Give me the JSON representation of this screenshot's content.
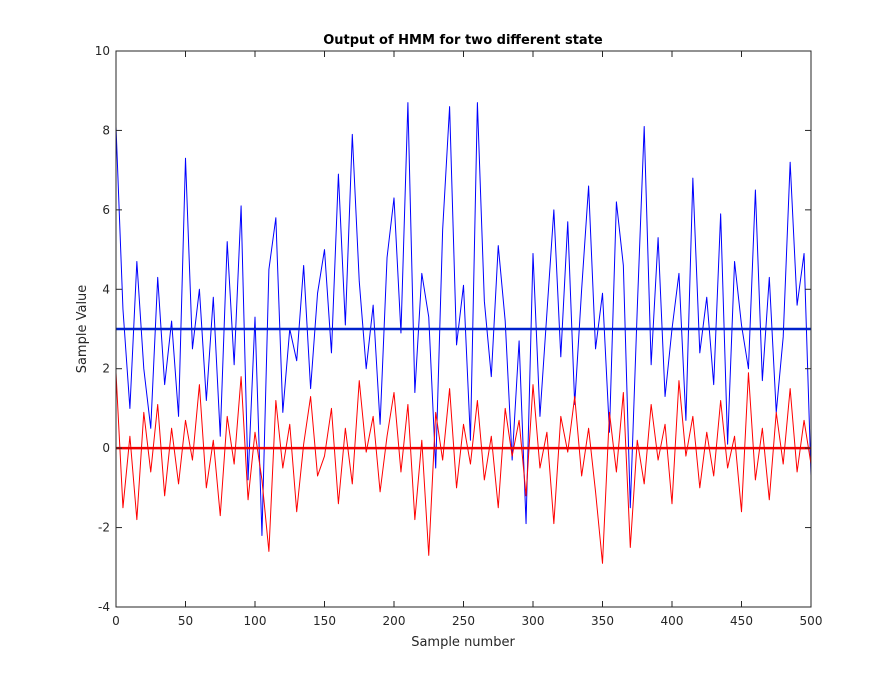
{
  "chart_data": {
    "type": "line",
    "title": "Output of HMM for two different state",
    "x_label": "Sample number",
    "y_label": "Sample Value",
    "x": [
      0,
      5,
      10,
      15,
      20,
      25,
      30,
      35,
      40,
      45,
      50,
      55,
      60,
      65,
      70,
      75,
      80,
      85,
      90,
      95,
      100,
      105,
      110,
      115,
      120,
      125,
      130,
      135,
      140,
      145,
      150,
      155,
      160,
      165,
      170,
      175,
      180,
      185,
      190,
      195,
      200,
      205,
      210,
      215,
      220,
      225,
      230,
      235,
      240,
      245,
      250,
      255,
      260,
      265,
      270,
      275,
      280,
      285,
      290,
      295,
      300,
      305,
      310,
      315,
      320,
      325,
      330,
      335,
      340,
      345,
      350,
      355,
      360,
      365,
      370,
      375,
      380,
      385,
      390,
      395,
      400,
      405,
      410,
      415,
      420,
      425,
      430,
      435,
      440,
      445,
      450,
      455,
      460,
      465,
      470,
      475,
      480,
      485,
      490,
      495,
      500
    ],
    "series": [
      {
        "color": "#0000ff",
        "values": [
          8.1,
          3.5,
          1.0,
          4.7,
          2.0,
          0.5,
          4.3,
          1.6,
          3.2,
          0.8,
          7.3,
          2.5,
          4.0,
          1.2,
          3.8,
          0.3,
          5.2,
          2.1,
          6.1,
          -0.8,
          3.3,
          -2.2,
          4.5,
          5.8,
          0.9,
          3.0,
          2.2,
          4.6,
          1.5,
          3.9,
          5.0,
          2.4,
          6.9,
          3.1,
          7.9,
          4.2,
          2.0,
          3.6,
          0.6,
          4.8,
          6.3,
          2.9,
          8.7,
          1.4,
          4.4,
          3.3,
          -0.5,
          5.5,
          8.6,
          2.6,
          4.1,
          0.2,
          8.7,
          3.7,
          1.8,
          5.1,
          3.2,
          -0.3,
          2.7,
          -1.9,
          4.9,
          0.8,
          3.4,
          6.0,
          2.3,
          5.7,
          1.1,
          4.0,
          6.6,
          2.5,
          3.9,
          0.4,
          6.2,
          4.6,
          -1.5,
          3.5,
          8.1,
          2.1,
          5.3,
          1.3,
          3.0,
          4.4,
          0.7,
          6.8,
          2.4,
          3.8,
          1.6,
          5.9,
          0.1,
          4.7,
          3.1,
          2.0,
          6.5,
          1.7,
          4.3,
          0.9,
          2.8,
          7.2,
          3.6,
          4.9,
          -0.7
        ]
      },
      {
        "color": "#ff0000",
        "values": [
          1.9,
          -1.5,
          0.3,
          -1.8,
          0.9,
          -0.6,
          1.1,
          -1.2,
          0.5,
          -0.9,
          0.7,
          -0.3,
          1.6,
          -1.0,
          0.2,
          -1.7,
          0.8,
          -0.4,
          1.8,
          -1.3,
          0.4,
          -0.8,
          -2.6,
          1.2,
          -0.5,
          0.6,
          -1.6,
          0.1,
          1.3,
          -0.7,
          -0.2,
          1.0,
          -1.4,
          0.5,
          -0.9,
          1.7,
          -0.1,
          0.8,
          -1.1,
          0.3,
          1.4,
          -0.6,
          1.1,
          -1.8,
          0.2,
          -2.7,
          0.9,
          -0.3,
          1.5,
          -1.0,
          0.6,
          -0.4,
          1.2,
          -0.8,
          0.3,
          -1.5,
          1.0,
          -0.2,
          0.7,
          -1.2,
          1.6,
          -0.5,
          0.4,
          -1.9,
          0.8,
          -0.1,
          1.3,
          -0.7,
          0.5,
          -1.1,
          -2.9,
          0.9,
          -0.6,
          1.4,
          -2.5,
          0.2,
          -0.9,
          1.1,
          -0.3,
          0.6,
          -1.4,
          1.7,
          -0.2,
          0.8,
          -1.0,
          0.4,
          -0.7,
          1.2,
          -0.5,
          0.3,
          -1.6,
          1.9,
          -0.8,
          0.5,
          -1.3,
          0.9,
          -0.4,
          1.5,
          -0.6,
          0.7,
          -0.4
        ]
      },
      {
        "color": "#0022cc",
        "x": [
          0,
          500
        ],
        "values": [
          3,
          3
        ]
      },
      {
        "color": "#ee0000",
        "x": [
          0,
          500
        ],
        "values": [
          0,
          0
        ]
      }
    ],
    "xlim": [
      0,
      500
    ],
    "xticks": [
      0,
      50,
      100,
      150,
      200,
      250,
      300,
      350,
      400,
      450,
      500
    ],
    "ylim": [
      -4,
      10
    ],
    "yticks": [
      -4,
      -2,
      0,
      2,
      4,
      6,
      8,
      10
    ]
  }
}
